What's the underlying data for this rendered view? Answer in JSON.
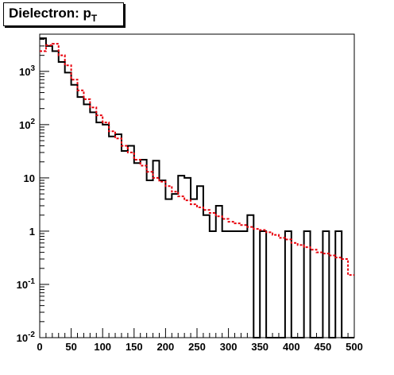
{
  "chart_data": {
    "type": "histogram",
    "title": "Dielectron: p",
    "title_subscript": "T",
    "xlabel": "",
    "ylabel": "",
    "xlim": [
      0,
      500
    ],
    "ylim": [
      0.01,
      5000
    ],
    "yscale": "log",
    "grid": false,
    "bin_width": 10,
    "bin_edges_start": 0,
    "x_ticks": [
      "0",
      "50",
      "100",
      "150",
      "200",
      "250",
      "300",
      "350",
      "400",
      "450",
      "500"
    ],
    "y_ticks": [
      {
        "value": 0.01,
        "base": "10",
        "exp": "-2"
      },
      {
        "value": 0.1,
        "base": "10",
        "exp": "-1"
      },
      {
        "value": 1,
        "base": "1",
        "exp": ""
      },
      {
        "value": 10,
        "base": "10",
        "exp": ""
      },
      {
        "value": 100,
        "base": "10",
        "exp": "2"
      },
      {
        "value": 1000,
        "base": "10",
        "exp": "3"
      }
    ],
    "series": [
      {
        "style": "solid",
        "color": "#000000",
        "values": [
          4200,
          3000,
          2400,
          1500,
          950,
          560,
          330,
          240,
          170,
          110,
          100,
          60,
          66,
          32,
          40,
          19,
          22,
          9,
          21,
          9,
          4,
          5,
          11,
          10,
          4,
          7,
          2,
          1,
          3,
          1,
          1,
          1,
          1,
          2,
          0.01,
          1,
          0.01,
          0.01,
          0.01,
          1,
          0.01,
          0.01,
          1,
          0.01,
          0.01,
          1,
          0.01,
          1,
          0.01,
          0.01
        ]
      },
      {
        "style": "dashed",
        "color": "#e8000b",
        "values": [
          2400,
          3100,
          3300,
          2000,
          1300,
          700,
          440,
          300,
          210,
          150,
          110,
          75,
          55,
          40,
          30,
          22,
          17,
          13,
          10,
          8.5,
          7,
          5.5,
          4.5,
          3.8,
          3.2,
          2.8,
          2.5,
          2.2,
          1.9,
          1.7,
          1.5,
          1.4,
          1.3,
          1.2,
          1.1,
          1.05,
          0.95,
          0.85,
          0.75,
          0.7,
          0.6,
          0.55,
          0.5,
          0.45,
          0.4,
          0.38,
          0.35,
          0.32,
          0.3,
          0.15
        ]
      }
    ]
  }
}
